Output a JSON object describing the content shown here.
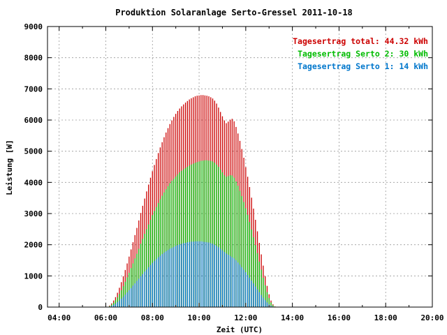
{
  "chart_data": {
    "type": "bar",
    "title": "Produktion Solaranlage Serto-Gressel 2011-10-18",
    "xlabel": "Zeit (UTC)",
    "ylabel": "Leistung [W]",
    "xlim": [
      3.5,
      20.0
    ],
    "ylim": [
      0,
      9000
    ],
    "x_ticks": [
      "04:00",
      "06:00",
      "08:00",
      "10:00",
      "12:00",
      "14:00",
      "16:00",
      "18:00",
      "20:00"
    ],
    "y_ticks": [
      "0",
      "1000",
      "2000",
      "3000",
      "4000",
      "5000",
      "6000",
      "7000",
      "8000",
      "9000"
    ],
    "grid": true,
    "legend_position": "top-right",
    "interval_minutes": 5,
    "start_time": "06:05",
    "series": [
      {
        "name": "Tagesertrag total: 44.32 kWh",
        "color": "#cc0000",
        "values": [
          10,
          50,
          120,
          210,
          320,
          460,
          620,
          800,
          990,
          1190,
          1400,
          1620,
          1850,
          2080,
          2310,
          2540,
          2780,
          3020,
          3250,
          3480,
          3710,
          3930,
          4150,
          4360,
          4560,
          4750,
          4940,
          5120,
          5290,
          5450,
          5600,
          5740,
          5870,
          5990,
          6100,
          6200,
          6290,
          6370,
          6440,
          6500,
          6560,
          6610,
          6660,
          6700,
          6730,
          6760,
          6780,
          6790,
          6800,
          6800,
          6790,
          6780,
          6760,
          6730,
          6690,
          6620,
          6530,
          6400,
          6260,
          6120,
          5990,
          5900,
          5950,
          6010,
          6040,
          5960,
          5780,
          5570,
          5330,
          5070,
          4790,
          4490,
          4180,
          3850,
          3510,
          3160,
          2800,
          2430,
          2060,
          1690,
          1330,
          990,
          680,
          410,
          210,
          90,
          20
        ]
      },
      {
        "name": "Tagesertrag Serto 2: 30 kWh",
        "color": "#00bb00",
        "values": [
          5,
          30,
          80,
          140,
          220,
          310,
          420,
          540,
          670,
          810,
          950,
          1100,
          1250,
          1400,
          1560,
          1710,
          1870,
          2030,
          2190,
          2350,
          2500,
          2650,
          2800,
          2950,
          3080,
          3210,
          3340,
          3460,
          3570,
          3680,
          3780,
          3880,
          3970,
          4050,
          4120,
          4190,
          4260,
          4320,
          4370,
          4420,
          4460,
          4500,
          4540,
          4570,
          4600,
          4630,
          4650,
          4670,
          4690,
          4700,
          4710,
          4710,
          4700,
          4690,
          4670,
          4630,
          4570,
          4500,
          4410,
          4320,
          4230,
          4180,
          4200,
          4230,
          4220,
          4150,
          4030,
          3890,
          3730,
          3560,
          3370,
          3170,
          2960,
          2730,
          2490,
          2240,
          1990,
          1730,
          1460,
          1200,
          940,
          700,
          480,
          290,
          150,
          60,
          15
        ]
      },
      {
        "name": "Tagesertrag Serto 1: 14 kWh",
        "color": "#0077cc",
        "values": [
          2,
          15,
          40,
          70,
          110,
          160,
          210,
          270,
          330,
          400,
          470,
          540,
          610,
          690,
          760,
          840,
          910,
          990,
          1060,
          1140,
          1210,
          1280,
          1350,
          1420,
          1480,
          1540,
          1600,
          1650,
          1700,
          1750,
          1790,
          1830,
          1870,
          1900,
          1930,
          1960,
          1990,
          2010,
          2030,
          2050,
          2060,
          2080,
          2090,
          2100,
          2100,
          2110,
          2110,
          2110,
          2110,
          2100,
          2090,
          2080,
          2070,
          2050,
          2030,
          2000,
          1960,
          1920,
          1870,
          1820,
          1770,
          1720,
          1680,
          1640,
          1600,
          1560,
          1500,
          1430,
          1360,
          1280,
          1200,
          1120,
          1030,
          940,
          850,
          760,
          660,
          570,
          480,
          390,
          300,
          220,
          150,
          90,
          45,
          15,
          4
        ]
      }
    ]
  }
}
